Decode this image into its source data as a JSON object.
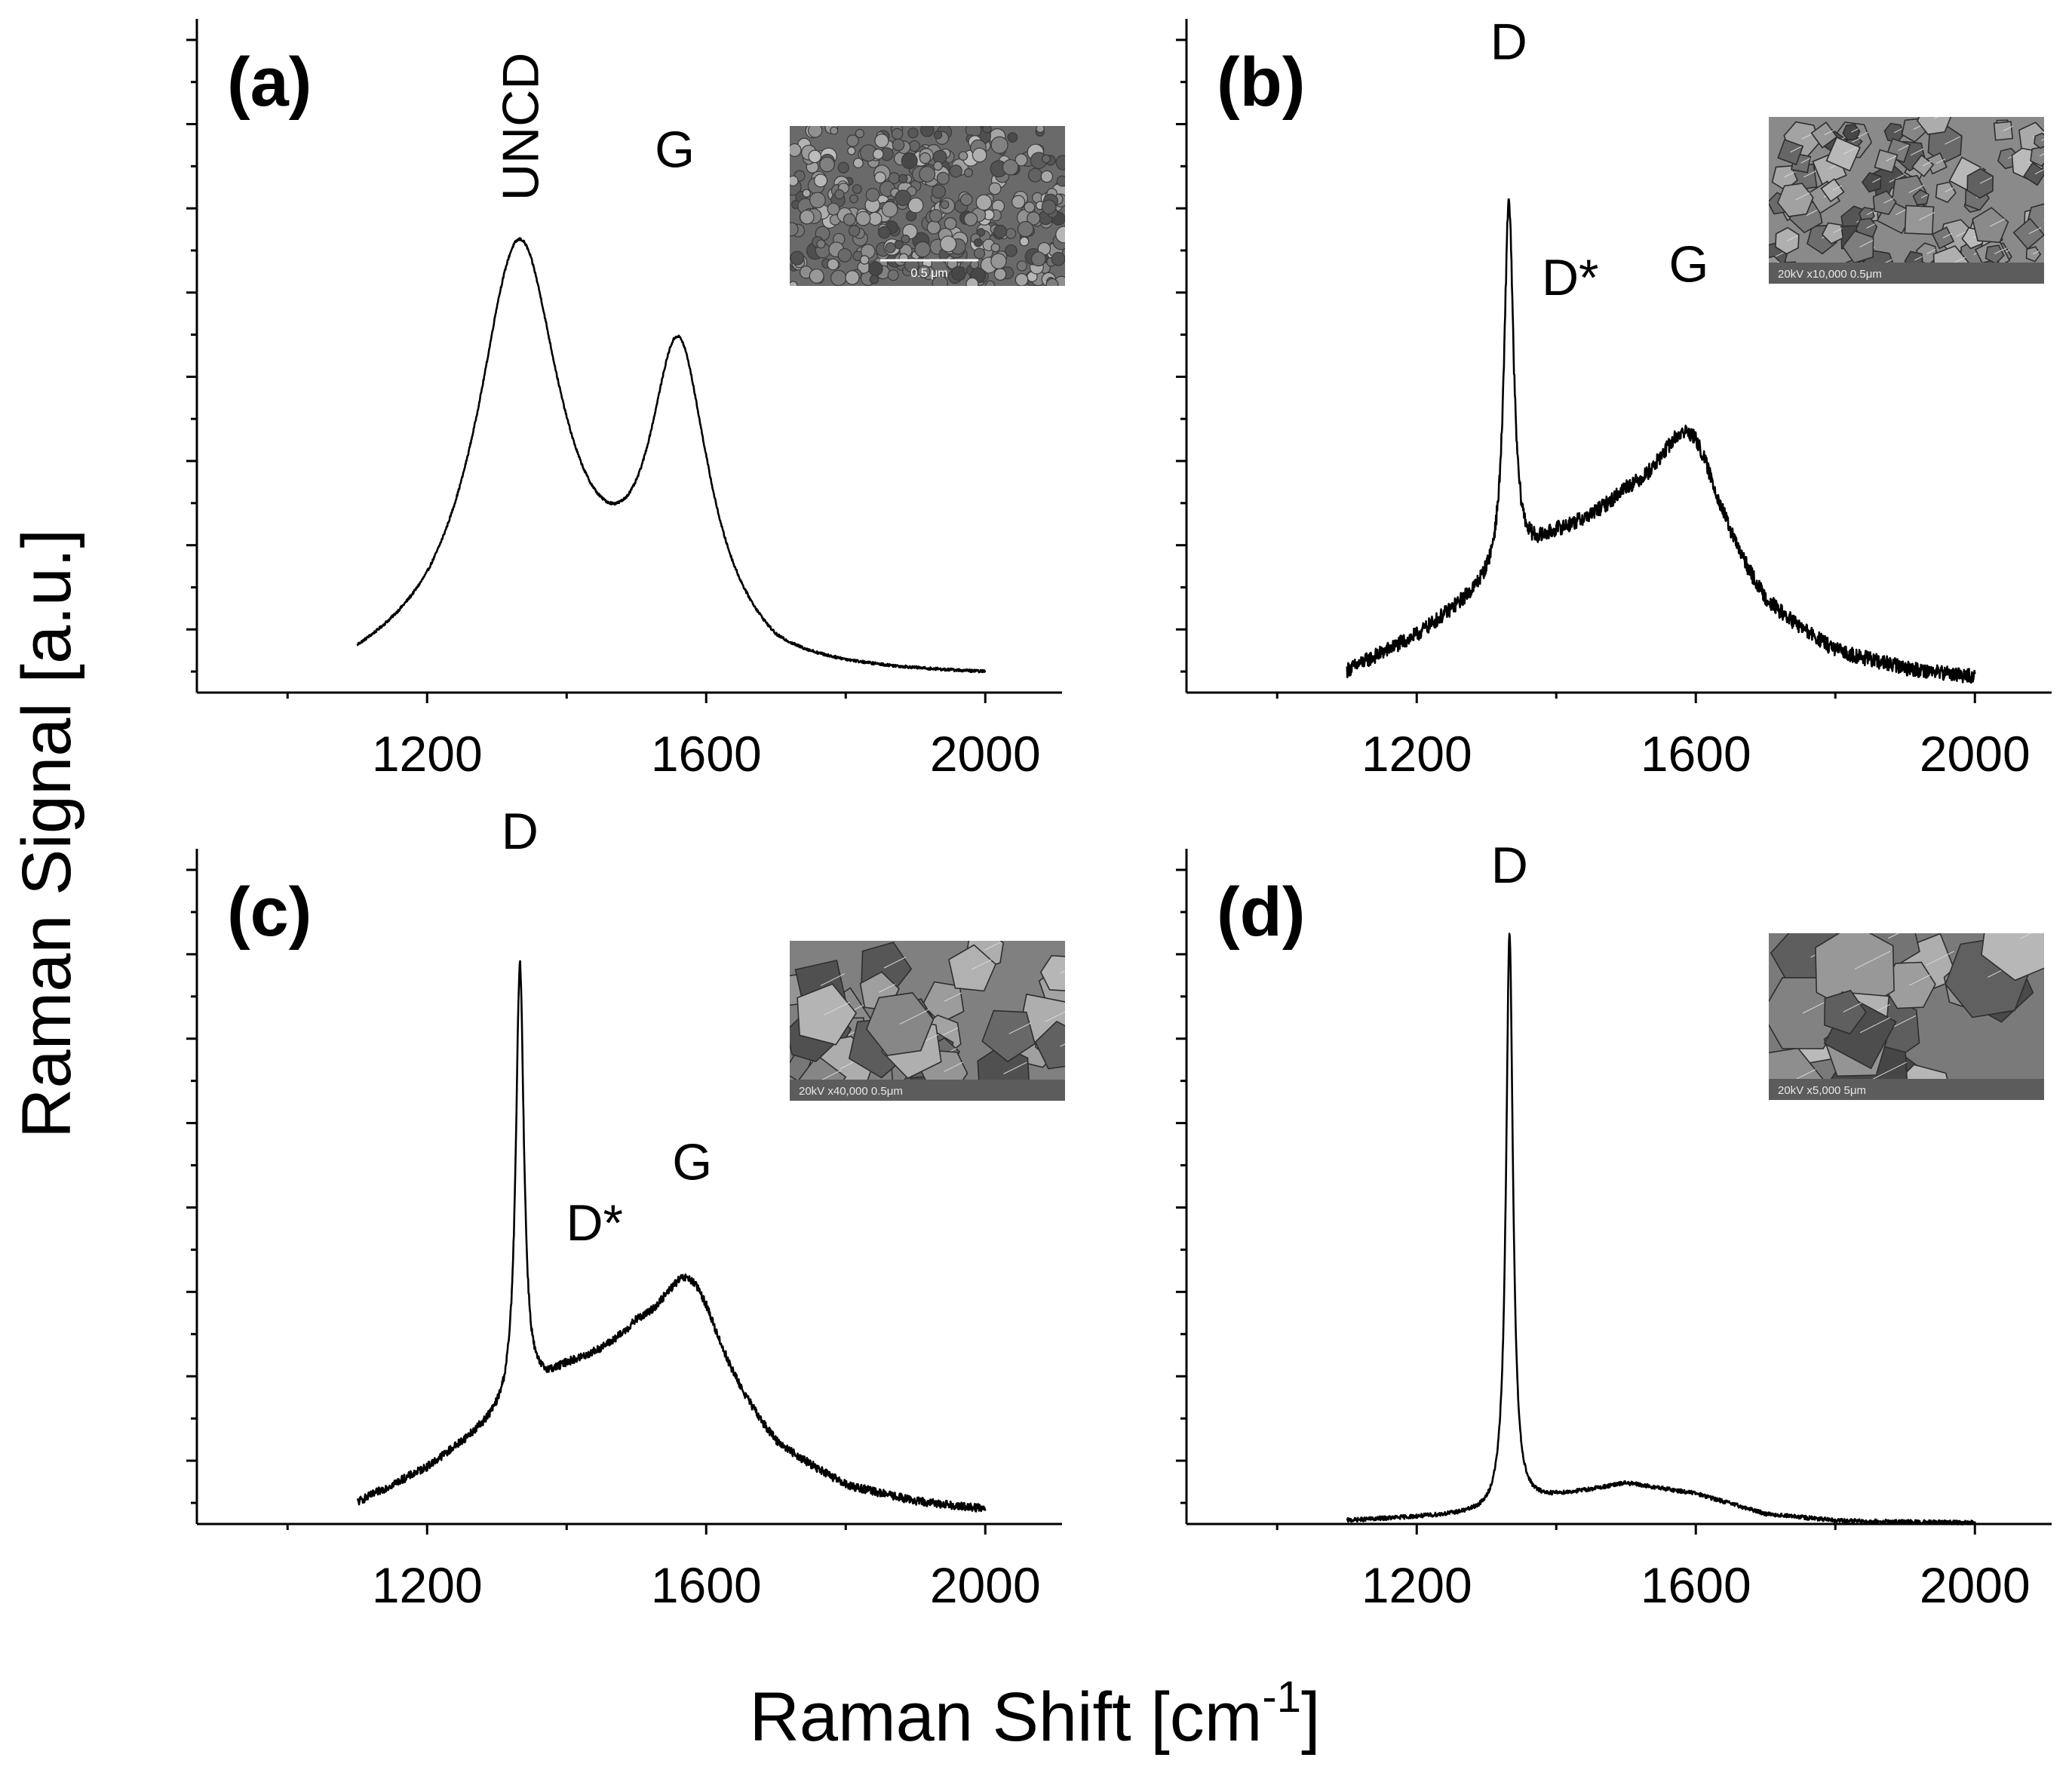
{
  "figure": {
    "ylabel": "Raman Signal [a.u.]",
    "xlabel_main": "Raman Shift [cm",
    "xlabel_sup": "-1",
    "xlabel_close": "]"
  },
  "colors": {
    "line": "#000000",
    "background": "#ffffff"
  },
  "chart_data": [
    {
      "type": "line",
      "panel_label": "(a)",
      "title": "",
      "xlabel": "Raman Shift [cm-1]",
      "ylabel": "Raman Signal [a.u.]",
      "xlim": [
        870,
        2110
      ],
      "ylim": [
        0,
        1.0
      ],
      "xticks": [
        1200,
        1600,
        2000
      ],
      "xtick_labels": [
        "1200",
        "1600",
        "2000"
      ],
      "noise": 0.002,
      "baseline": {
        "x": [
          1100,
          1200,
          1300,
          1400,
          1500,
          1600,
          1700,
          1800,
          1900,
          2000
        ],
        "y": [
          0.02,
          0.05,
          0.1,
          0.08,
          0.06,
          0.06,
          0.02,
          0.02,
          0.02,
          0.02
        ]
      },
      "peaks": [
        {
          "center": 1333,
          "height": 0.56,
          "width": 70
        },
        {
          "center": 1560,
          "height": 0.42,
          "width": 50
        }
      ],
      "x_range": [
        1100,
        2000
      ],
      "peak_labels": [
        {
          "text": "UNCD",
          "x": 1333,
          "y": 0.84,
          "rotate": true
        },
        {
          "text": "G",
          "x": 1555,
          "y": 0.78,
          "rotate": false
        }
      ],
      "inset": {
        "kind": "sem",
        "texture": "fine-grains",
        "caption": "0.5 μm",
        "tone": "#6a6a6a"
      }
    },
    {
      "type": "line",
      "panel_label": "(b)",
      "title": "",
      "xlabel": "Raman Shift [cm-1]",
      "ylabel": "Raman Signal [a.u.]",
      "xlim": [
        870,
        2110
      ],
      "ylim": [
        0,
        1.0
      ],
      "xticks": [
        1200,
        1600,
        2000
      ],
      "xtick_labels": [
        "1200",
        "1600",
        "2000"
      ],
      "noise": 0.011,
      "baseline": {
        "x": [
          1100,
          1200,
          1300,
          1400,
          1500,
          1600,
          1700,
          1800,
          1900,
          2000
        ],
        "y": [
          0.03,
          0.08,
          0.15,
          0.22,
          0.25,
          0.2,
          0.1,
          0.05,
          0.03,
          0.02
        ]
      },
      "peaks": [
        {
          "center": 1332,
          "height": 0.55,
          "width": 8
        },
        {
          "center": 1590,
          "height": 0.18,
          "width": 60
        }
      ],
      "x_range": [
        1100,
        2000
      ],
      "peak_labels": [
        {
          "text": "D",
          "x": 1332,
          "y": 0.94,
          "rotate": false
        },
        {
          "text": "D*",
          "x": 1420,
          "y": 0.59,
          "rotate": false
        },
        {
          "text": "G",
          "x": 1590,
          "y": 0.61,
          "rotate": false
        }
      ],
      "inset": {
        "kind": "sem",
        "texture": "mixed-facets",
        "caption": "20kV  x10,000  0.5μm",
        "tone": "#8a8a8a"
      }
    },
    {
      "type": "line",
      "panel_label": "(c)",
      "title": "",
      "xlabel": "Raman Shift [cm-1]",
      "ylabel": "Raman Signal [a.u.]",
      "xlim": [
        870,
        2110
      ],
      "ylim": [
        0,
        1.0
      ],
      "xticks": [
        1200,
        1600,
        2000
      ],
      "xtick_labels": [
        "1200",
        "1600",
        "2000"
      ],
      "noise": 0.006,
      "baseline": {
        "x": [
          1100,
          1200,
          1300,
          1400,
          1500,
          1600,
          1700,
          1800,
          1900,
          2000
        ],
        "y": [
          0.03,
          0.08,
          0.15,
          0.22,
          0.25,
          0.2,
          0.1,
          0.05,
          0.03,
          0.02
        ]
      },
      "peaks": [
        {
          "center": 1333,
          "height": 0.65,
          "width": 7
        },
        {
          "center": 1575,
          "height": 0.15,
          "width": 55
        }
      ],
      "x_range": [
        1100,
        2000
      ],
      "peak_labels": [
        {
          "text": "D",
          "x": 1333,
          "y": 1.0,
          "rotate": false
        },
        {
          "text": "D*",
          "x": 1440,
          "y": 0.42,
          "rotate": false
        },
        {
          "text": "G",
          "x": 1580,
          "y": 0.51,
          "rotate": false
        }
      ],
      "inset": {
        "kind": "sem",
        "texture": "large-facets",
        "caption": "20kV  x40,000  0.5μm",
        "tone": "#808080"
      }
    },
    {
      "type": "line",
      "panel_label": "(d)",
      "title": "",
      "xlabel": "Raman Shift [cm-1]",
      "ylabel": "Raman Signal [a.u.]",
      "xlim": [
        870,
        2110
      ],
      "ylim": [
        0,
        1.0
      ],
      "xticks": [
        1200,
        1600,
        2000
      ],
      "xtick_labels": [
        "1200",
        "1600",
        "2000"
      ],
      "noise": 0.003,
      "baseline": {
        "x": [
          1100,
          1200,
          1300,
          1400,
          1500,
          1600,
          1700,
          1800,
          1900,
          2000
        ],
        "y": [
          0.005,
          0.01,
          0.015,
          0.04,
          0.06,
          0.045,
          0.015,
          0.005,
          0.003,
          0.002
        ]
      },
      "peaks": [
        {
          "center": 1333,
          "height": 0.85,
          "width": 6
        }
      ],
      "x_range": [
        1100,
        2000
      ],
      "peak_labels": [
        {
          "text": "D",
          "x": 1333,
          "y": 0.95,
          "rotate": false
        }
      ],
      "inset": {
        "kind": "sem",
        "texture": "big-crystals",
        "caption": "20kV  x5,000  5μm",
        "tone": "#7a7a7a"
      }
    }
  ]
}
